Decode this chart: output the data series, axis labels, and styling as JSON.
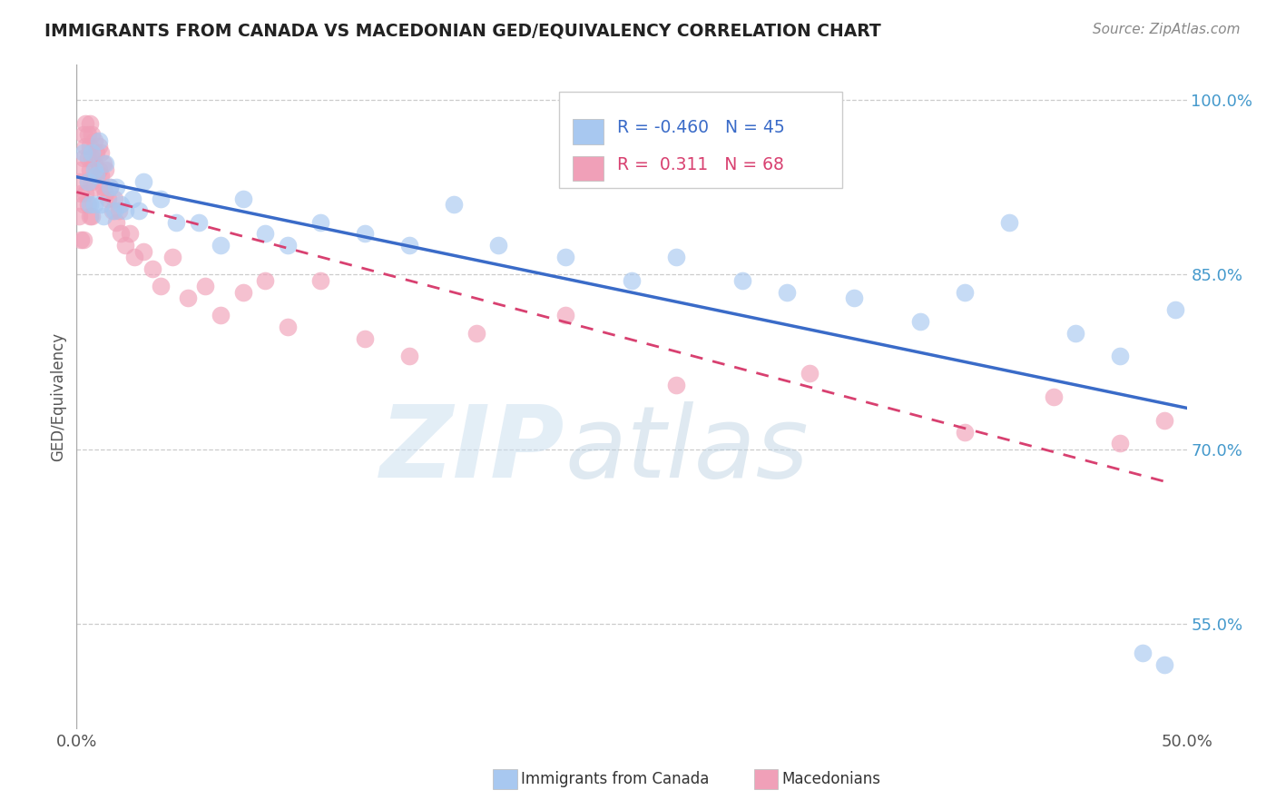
{
  "title": "IMMIGRANTS FROM CANADA VS MACEDONIAN GED/EQUIVALENCY CORRELATION CHART",
  "source": "Source: ZipAtlas.com",
  "ylabel": "GED/Equivalency",
  "xmin": 0.0,
  "xmax": 0.5,
  "ymin": 0.46,
  "ymax": 1.03,
  "yticks": [
    0.5,
    0.55,
    0.6,
    0.65,
    0.7,
    0.75,
    0.8,
    0.85,
    0.9,
    0.95,
    1.0
  ],
  "ytick_labels": [
    "",
    "55.0%",
    "",
    "",
    "70.0%",
    "",
    "",
    "85.0%",
    "",
    "",
    "100.0%"
  ],
  "xticks": [
    0.0,
    0.1,
    0.2,
    0.3,
    0.4,
    0.5
  ],
  "xtick_labels": [
    "0.0%",
    "",
    "",
    "",
    "",
    "50.0%"
  ],
  "blue_R": -0.46,
  "blue_N": 45,
  "pink_R": 0.311,
  "pink_N": 68,
  "blue_color": "#a8c8f0",
  "pink_color": "#f0a0b8",
  "blue_line_color": "#3a6bc8",
  "pink_line_color": "#d84070",
  "legend_label_blue": "Immigrants from Canada",
  "legend_label_pink": "Macedonians",
  "blue_x": [
    0.003,
    0.005,
    0.006,
    0.007,
    0.008,
    0.008,
    0.009,
    0.01,
    0.011,
    0.012,
    0.013,
    0.015,
    0.017,
    0.018,
    0.02,
    0.022,
    0.025,
    0.028,
    0.03,
    0.038,
    0.045,
    0.055,
    0.065,
    0.075,
    0.085,
    0.095,
    0.11,
    0.13,
    0.15,
    0.17,
    0.19,
    0.22,
    0.25,
    0.27,
    0.3,
    0.32,
    0.35,
    0.38,
    0.4,
    0.42,
    0.45,
    0.47,
    0.48,
    0.49,
    0.495
  ],
  "blue_y": [
    0.955,
    0.93,
    0.91,
    0.955,
    0.94,
    0.91,
    0.935,
    0.965,
    0.91,
    0.9,
    0.945,
    0.925,
    0.905,
    0.925,
    0.91,
    0.905,
    0.915,
    0.905,
    0.93,
    0.915,
    0.895,
    0.895,
    0.875,
    0.915,
    0.885,
    0.875,
    0.895,
    0.885,
    0.875,
    0.91,
    0.875,
    0.865,
    0.845,
    0.865,
    0.845,
    0.835,
    0.83,
    0.81,
    0.835,
    0.895,
    0.8,
    0.78,
    0.525,
    0.515,
    0.82
  ],
  "pink_x": [
    0.001,
    0.001,
    0.002,
    0.002,
    0.002,
    0.003,
    0.003,
    0.003,
    0.003,
    0.004,
    0.004,
    0.004,
    0.005,
    0.005,
    0.005,
    0.005,
    0.006,
    0.006,
    0.006,
    0.006,
    0.007,
    0.007,
    0.007,
    0.007,
    0.008,
    0.008,
    0.008,
    0.009,
    0.009,
    0.01,
    0.01,
    0.011,
    0.011,
    0.012,
    0.012,
    0.013,
    0.013,
    0.014,
    0.015,
    0.016,
    0.017,
    0.018,
    0.019,
    0.02,
    0.022,
    0.024,
    0.026,
    0.03,
    0.034,
    0.038,
    0.043,
    0.05,
    0.058,
    0.065,
    0.075,
    0.085,
    0.095,
    0.11,
    0.13,
    0.15,
    0.18,
    0.22,
    0.27,
    0.33,
    0.4,
    0.44,
    0.47,
    0.49
  ],
  "pink_y": [
    0.93,
    0.9,
    0.94,
    0.92,
    0.88,
    0.97,
    0.95,
    0.91,
    0.88,
    0.98,
    0.96,
    0.92,
    0.97,
    0.95,
    0.93,
    0.91,
    0.98,
    0.96,
    0.94,
    0.9,
    0.97,
    0.95,
    0.93,
    0.9,
    0.965,
    0.945,
    0.925,
    0.955,
    0.935,
    0.96,
    0.94,
    0.955,
    0.935,
    0.945,
    0.925,
    0.94,
    0.92,
    0.915,
    0.925,
    0.905,
    0.915,
    0.895,
    0.905,
    0.885,
    0.875,
    0.885,
    0.865,
    0.87,
    0.855,
    0.84,
    0.865,
    0.83,
    0.84,
    0.815,
    0.835,
    0.845,
    0.805,
    0.845,
    0.795,
    0.78,
    0.8,
    0.815,
    0.755,
    0.765,
    0.715,
    0.745,
    0.705,
    0.725
  ]
}
